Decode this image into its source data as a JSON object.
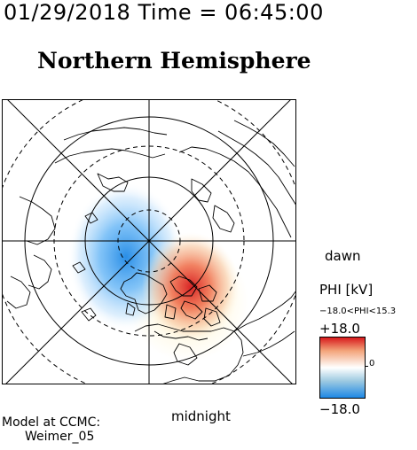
{
  "header": {
    "timestamp": "01/29/2018 Time = 06:45:00",
    "title": "Northern Hemisphere"
  },
  "map": {
    "orientation_labels": {
      "right": "dawn",
      "bottom": "midnight"
    },
    "projection": "polar stereographic, north pole centered",
    "potential_cells": [
      {
        "sign": "negative",
        "color": "#1e88e5",
        "location": "dusk-side, left of pole"
      },
      {
        "sign": "positive",
        "color": "#d7191c",
        "location": "dawn/midnight quadrant, lower-right of pole"
      }
    ]
  },
  "colorbar": {
    "title": "PHI [kV]",
    "range_text": "−18.0<PHI<15.3",
    "max_label": "+18.0",
    "zero_label": "0",
    "min_label": "−18.0",
    "colors": {
      "max": "#d7191c",
      "mid": "#ffffff",
      "min": "#1e88e5"
    }
  },
  "credits": {
    "line1": "Model at CCMC:",
    "line2": "Weimer_05"
  }
}
